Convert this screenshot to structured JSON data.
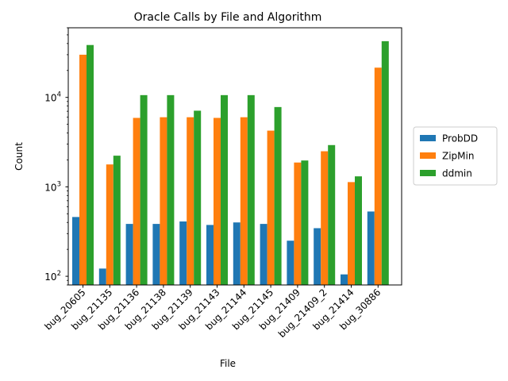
{
  "chart_data": {
    "type": "bar",
    "title": "Oracle Calls by File and Algorithm",
    "xlabel": "File",
    "ylabel": "Count",
    "yscale": "log",
    "ylim": [
      80,
      60000
    ],
    "yticks": [
      {
        "value": 100,
        "base": "10",
        "exp": "2"
      },
      {
        "value": 1000,
        "base": "10",
        "exp": "3"
      },
      {
        "value": 10000,
        "base": "10",
        "exp": "4"
      }
    ],
    "categories": [
      "bug_20605",
      "bug_21135",
      "bug_21136",
      "bug_21138",
      "bug_21139",
      "bug_21143",
      "bug_21144",
      "bug_21145",
      "bug_21409",
      "bug_21409_2",
      "bug_21414",
      "bug_30886"
    ],
    "series": [
      {
        "name": "ProbDD",
        "color": "#1f77b4",
        "values": [
          460,
          122,
          385,
          385,
          410,
          375,
          400,
          385,
          250,
          345,
          105,
          530
        ]
      },
      {
        "name": "ZipMin",
        "color": "#ff7f0e",
        "values": [
          30000,
          1780,
          5900,
          6000,
          6000,
          5900,
          6000,
          4250,
          1870,
          2500,
          1130,
          21500
        ]
      },
      {
        "name": "ddmin",
        "color": "#2ca02c",
        "values": [
          38500,
          2230,
          10600,
          10600,
          7100,
          10600,
          10600,
          7800,
          1970,
          2930,
          1310,
          42500
        ]
      }
    ],
    "legend": "center-right",
    "grid": false
  }
}
